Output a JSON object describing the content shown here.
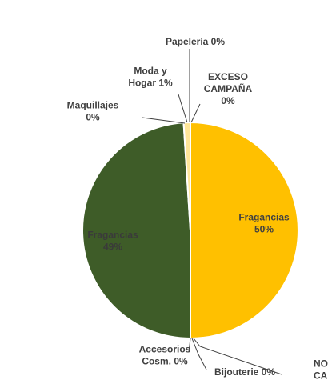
{
  "chart_data": {
    "type": "pie",
    "slices": [
      {
        "name": "Fragancias",
        "label_lines": [
          "Fragancias",
          "50%"
        ],
        "value": 50,
        "color": "#FFC000"
      },
      {
        "name": "NO CAMPAÑA",
        "label_lines": [
          "NO",
          "CAMPAÑA"
        ],
        "value": 0,
        "color": "#A5A5A5"
      },
      {
        "name": "Bijouterie",
        "label_lines": [
          "Bijouterie 0%"
        ],
        "value": 0,
        "color": "#5B9BD5"
      },
      {
        "name": "Accesorios Cosm.",
        "label_lines": [
          "Accesorios",
          "Cosm. 0%"
        ],
        "value": 0,
        "color": "#70AD47"
      },
      {
        "name": "Fragancias",
        "label_lines": [
          "Fragancias",
          "49%"
        ],
        "value": 49,
        "color": "#3E5C28"
      },
      {
        "name": "Maquillajes",
        "label_lines": [
          "Maquillajes",
          "0%"
        ],
        "value": 0,
        "color": "#264478"
      },
      {
        "name": "Moda y Hogar",
        "label_lines": [
          "Moda y",
          "Hogar 1%"
        ],
        "value": 1,
        "color": "#FFE699"
      },
      {
        "name": "Papelería",
        "label_lines": [
          "Papelería 0%"
        ],
        "value": 0,
        "color": "#ED7D31"
      },
      {
        "name": "EXCESO CAMPAÑA",
        "label_lines": [
          "EXCESO",
          "CAMPAÑA",
          "0%"
        ],
        "value": 0,
        "color": "#9E480E"
      }
    ]
  }
}
